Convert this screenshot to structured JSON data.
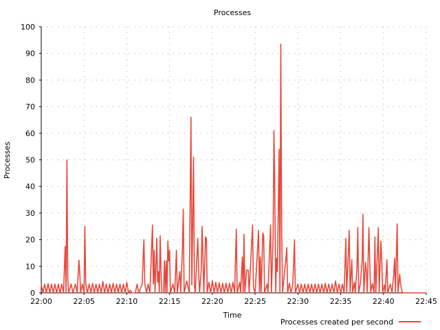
{
  "chart_data": {
    "type": "line",
    "title": "Processes",
    "xlabel": "Time",
    "ylabel": "Processes",
    "ylim": [
      0,
      100
    ],
    "y_ticks": [
      "0",
      "10",
      "20",
      "30",
      "40",
      "50",
      "60",
      "70",
      "80",
      "90",
      "100"
    ],
    "x_range_minutes": [
      0,
      45
    ],
    "x_ticks": [
      "22:00",
      "22:05",
      "22:10",
      "22:15",
      "22:20",
      "22:25",
      "22:30",
      "22:35",
      "22:40",
      "22:45"
    ],
    "grid": true,
    "legend_position": "bottom-right",
    "series": [
      {
        "name": "Processes created per second",
        "color": "#e8473a",
        "points": [
          [
            0.0,
            3.3
          ],
          [
            0.2,
            0
          ],
          [
            0.4,
            3.3
          ],
          [
            0.6,
            0
          ],
          [
            0.8,
            3.5
          ],
          [
            1.0,
            0
          ],
          [
            1.2,
            3.3
          ],
          [
            1.4,
            0
          ],
          [
            1.6,
            3.3
          ],
          [
            1.8,
            0
          ],
          [
            2.0,
            3.3
          ],
          [
            2.2,
            0
          ],
          [
            2.4,
            3.3
          ],
          [
            2.6,
            0
          ],
          [
            2.8,
            17.5
          ],
          [
            2.9,
            0
          ],
          [
            3.0,
            50.0
          ],
          [
            3.1,
            5.0
          ],
          [
            3.2,
            0
          ],
          [
            3.5,
            3.3
          ],
          [
            3.7,
            0
          ],
          [
            4.0,
            3.3
          ],
          [
            4.2,
            0
          ],
          [
            4.4,
            12.3
          ],
          [
            4.5,
            8.0
          ],
          [
            4.6,
            0
          ],
          [
            4.8,
            3.3
          ],
          [
            5.0,
            0
          ],
          [
            5.1,
            25.0
          ],
          [
            5.2,
            3.3
          ],
          [
            5.4,
            0
          ],
          [
            5.6,
            3.3
          ],
          [
            5.8,
            0
          ],
          [
            6.0,
            3.6
          ],
          [
            6.2,
            0
          ],
          [
            6.4,
            3.3
          ],
          [
            6.6,
            0
          ],
          [
            6.8,
            3.3
          ],
          [
            7.0,
            0
          ],
          [
            7.2,
            4.3
          ],
          [
            7.4,
            0
          ],
          [
            7.6,
            3.3
          ],
          [
            7.8,
            0
          ],
          [
            8.0,
            3.3
          ],
          [
            8.2,
            0
          ],
          [
            8.4,
            3.6
          ],
          [
            8.6,
            0
          ],
          [
            8.8,
            3.3
          ],
          [
            9.0,
            0
          ],
          [
            9.2,
            3.3
          ],
          [
            9.4,
            0
          ],
          [
            9.6,
            3.3
          ],
          [
            9.8,
            0
          ],
          [
            10.0,
            4.0
          ],
          [
            10.2,
            0
          ],
          [
            10.4,
            1.0
          ],
          [
            10.6,
            0
          ],
          [
            11.0,
            0
          ],
          [
            11.2,
            3.3
          ],
          [
            11.4,
            0
          ],
          [
            11.8,
            3.3
          ],
          [
            11.9,
            12.5
          ],
          [
            12.0,
            20.0
          ],
          [
            12.1,
            3.6
          ],
          [
            12.3,
            0
          ],
          [
            12.5,
            3.3
          ],
          [
            12.7,
            0
          ],
          [
            13.0,
            25.5
          ],
          [
            13.1,
            3.3
          ],
          [
            13.2,
            16.0
          ],
          [
            13.3,
            0
          ],
          [
            13.5,
            20.5
          ],
          [
            13.6,
            4.0
          ],
          [
            13.7,
            8.0
          ],
          [
            13.8,
            0
          ],
          [
            13.9,
            21.5
          ],
          [
            14.0,
            8.0
          ],
          [
            14.1,
            0
          ],
          [
            14.3,
            0
          ],
          [
            14.4,
            12.0
          ],
          [
            14.5,
            0
          ],
          [
            14.6,
            12.0
          ],
          [
            14.7,
            0
          ],
          [
            14.8,
            19.5
          ],
          [
            14.9,
            12.0
          ],
          [
            15.0,
            16.0
          ],
          [
            15.1,
            0
          ],
          [
            15.4,
            3.3
          ],
          [
            15.6,
            0
          ],
          [
            15.8,
            16.0
          ],
          [
            15.9,
            0
          ],
          [
            16.2,
            8.0
          ],
          [
            16.3,
            0
          ],
          [
            16.5,
            16.5
          ],
          [
            16.6,
            31.5
          ],
          [
            16.7,
            0
          ],
          [
            17.0,
            4.5
          ],
          [
            17.1,
            3.0
          ],
          [
            17.3,
            0
          ],
          [
            17.5,
            66.0
          ],
          [
            17.6,
            3.0
          ],
          [
            17.8,
            51.0
          ],
          [
            17.9,
            3.0
          ],
          [
            18.0,
            0
          ],
          [
            18.3,
            20.5
          ],
          [
            18.4,
            8.0
          ],
          [
            18.5,
            0
          ],
          [
            18.7,
            8.5
          ],
          [
            18.8,
            25.0
          ],
          [
            18.9,
            14.0
          ],
          [
            19.0,
            0
          ],
          [
            19.2,
            21.0
          ],
          [
            19.3,
            20.5
          ],
          [
            19.4,
            0
          ],
          [
            19.6,
            4.0
          ],
          [
            19.8,
            0
          ],
          [
            20.0,
            4.5
          ],
          [
            20.2,
            0
          ],
          [
            20.4,
            4.0
          ],
          [
            20.6,
            0
          ],
          [
            20.8,
            3.8
          ],
          [
            21.0,
            0
          ],
          [
            21.2,
            3.6
          ],
          [
            21.4,
            0
          ],
          [
            21.6,
            3.6
          ],
          [
            21.8,
            0
          ],
          [
            22.0,
            3.6
          ],
          [
            22.2,
            0
          ],
          [
            22.4,
            4.0
          ],
          [
            22.6,
            0
          ],
          [
            22.8,
            24.0
          ],
          [
            22.9,
            0
          ],
          [
            23.2,
            4.0
          ],
          [
            23.3,
            0
          ],
          [
            23.5,
            13.5
          ],
          [
            23.6,
            0
          ],
          [
            23.7,
            22.0
          ],
          [
            23.8,
            0
          ],
          [
            24.0,
            8.5
          ],
          [
            24.2,
            8.5
          ],
          [
            24.3,
            0
          ],
          [
            24.7,
            25.5
          ],
          [
            24.8,
            2.0
          ],
          [
            25.0,
            0
          ],
          [
            25.4,
            23.5
          ],
          [
            25.5,
            0
          ],
          [
            25.6,
            13.5
          ],
          [
            25.7,
            0
          ],
          [
            25.9,
            22.5
          ],
          [
            26.0,
            21.5
          ],
          [
            26.1,
            0
          ],
          [
            26.4,
            3.3
          ],
          [
            26.5,
            0
          ],
          [
            26.8,
            25.5
          ],
          [
            26.9,
            0
          ],
          [
            27.1,
            20.5
          ],
          [
            27.2,
            61.0
          ],
          [
            27.3,
            37.5
          ],
          [
            27.4,
            0
          ],
          [
            27.5,
            13.0
          ],
          [
            27.6,
            8.0
          ],
          [
            27.8,
            54.0
          ],
          [
            27.9,
            0
          ],
          [
            28.0,
            93.5
          ],
          [
            28.1,
            25.0
          ],
          [
            28.2,
            0
          ],
          [
            28.6,
            13.0
          ],
          [
            28.7,
            17.0
          ],
          [
            28.8,
            0
          ],
          [
            29.0,
            3.6
          ],
          [
            29.2,
            0
          ],
          [
            29.4,
            3.3
          ],
          [
            29.6,
            20.0
          ],
          [
            29.7,
            0
          ],
          [
            30.0,
            3.3
          ],
          [
            30.2,
            0
          ],
          [
            30.4,
            3.3
          ],
          [
            30.6,
            0
          ],
          [
            30.8,
            3.3
          ],
          [
            31.0,
            0
          ],
          [
            31.2,
            3.3
          ],
          [
            31.4,
            0
          ],
          [
            31.6,
            3.3
          ],
          [
            31.8,
            0
          ],
          [
            32.0,
            3.3
          ],
          [
            32.2,
            0
          ],
          [
            32.4,
            3.3
          ],
          [
            32.6,
            0
          ],
          [
            32.8,
            3.3
          ],
          [
            33.0,
            0
          ],
          [
            33.2,
            3.6
          ],
          [
            33.4,
            0
          ],
          [
            33.6,
            3.3
          ],
          [
            33.8,
            0
          ],
          [
            34.0,
            3.3
          ],
          [
            34.2,
            0
          ],
          [
            34.4,
            4.5
          ],
          [
            34.6,
            0
          ],
          [
            34.8,
            3.3
          ],
          [
            35.0,
            0
          ],
          [
            35.2,
            3.3
          ],
          [
            35.4,
            0
          ],
          [
            35.6,
            20.5
          ],
          [
            35.7,
            0
          ],
          [
            36.0,
            23.5
          ],
          [
            36.1,
            0
          ],
          [
            36.3,
            12.5
          ],
          [
            36.4,
            0
          ],
          [
            36.6,
            4.0
          ],
          [
            36.7,
            0
          ],
          [
            36.9,
            9.5
          ],
          [
            37.0,
            24.5
          ],
          [
            37.1,
            0
          ],
          [
            37.3,
            3.5
          ],
          [
            37.5,
            11.5
          ],
          [
            37.6,
            29.5
          ],
          [
            37.7,
            0
          ],
          [
            37.9,
            11.5
          ],
          [
            38.0,
            8.0
          ],
          [
            38.1,
            0
          ],
          [
            38.3,
            24.5
          ],
          [
            38.4,
            11.0
          ],
          [
            38.5,
            0
          ],
          [
            38.7,
            3.5
          ],
          [
            38.9,
            0
          ],
          [
            39.0,
            21.0
          ],
          [
            39.1,
            0
          ],
          [
            39.3,
            15.5
          ],
          [
            39.4,
            24.5
          ],
          [
            39.5,
            0
          ],
          [
            39.7,
            19.5
          ],
          [
            39.8,
            12.0
          ],
          [
            39.9,
            0
          ],
          [
            40.1,
            3.0
          ],
          [
            40.2,
            0
          ],
          [
            40.4,
            12.5
          ],
          [
            40.5,
            0
          ],
          [
            40.8,
            3.3
          ],
          [
            41.0,
            0
          ],
          [
            41.2,
            7.0
          ],
          [
            41.3,
            13.0
          ],
          [
            41.4,
            0
          ],
          [
            41.6,
            26.0
          ],
          [
            41.7,
            0
          ],
          [
            41.9,
            7.0
          ],
          [
            42.0,
            3.3
          ],
          [
            42.2,
            0
          ],
          [
            45.0,
            0
          ]
        ]
      }
    ]
  }
}
